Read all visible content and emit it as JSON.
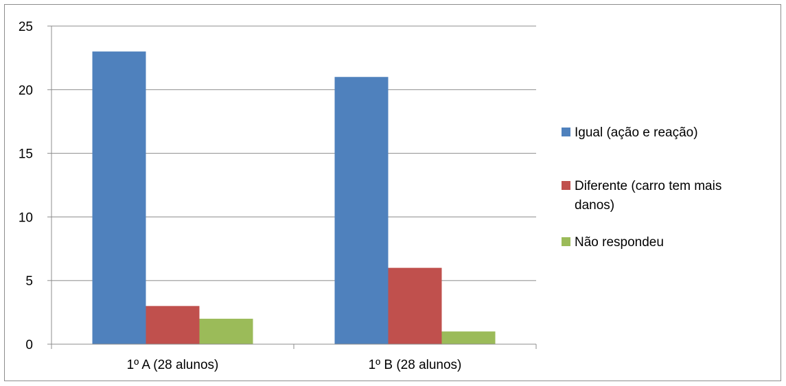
{
  "chart_data": {
    "type": "bar",
    "categories": [
      "1º A (28 alunos)",
      "1º B (28 alunos)"
    ],
    "series": [
      {
        "name": "Igual (ação e reação)",
        "values": [
          23,
          21
        ],
        "color": "#4f81bd"
      },
      {
        "name": "Diferente (carro tem mais danos)",
        "values": [
          3,
          6
        ],
        "color": "#c0504d"
      },
      {
        "name": "Não respondeu",
        "values": [
          2,
          1
        ],
        "color": "#9bbb59"
      }
    ],
    "y_ticks": [
      "0",
      "5",
      "10",
      "15",
      "20",
      "25"
    ],
    "ylim": [
      0,
      25
    ],
    "grid": true,
    "legend_position": "right"
  }
}
